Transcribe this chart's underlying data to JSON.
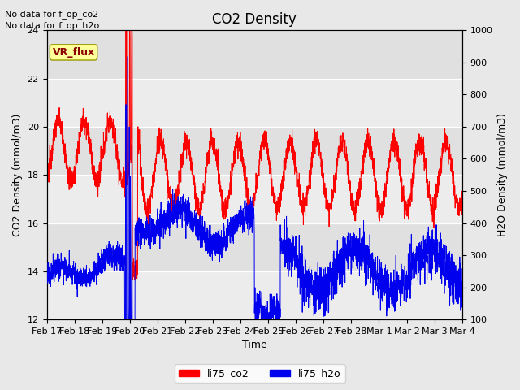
{
  "title": "CO2 Density",
  "xlabel": "Time",
  "ylabel_left": "CO2 Density (mmol/m3)",
  "ylabel_right": "H2O Density (mmol/m3)",
  "annotation_top_line1": "No data for f_op_co2",
  "annotation_top_line2": "No data for f_op_h2o",
  "annotation_box": "VR_flux",
  "ylim_left": [
    12,
    24
  ],
  "ylim_right": [
    100,
    1000
  ],
  "yticks_left": [
    12,
    14,
    16,
    18,
    20,
    22,
    24
  ],
  "yticks_right": [
    100,
    200,
    300,
    400,
    500,
    600,
    700,
    800,
    900,
    1000
  ],
  "xtick_labels": [
    "Feb 17",
    "Feb 18",
    "Feb 19",
    "Feb 20",
    "Feb 21",
    "Feb 22",
    "Feb 23",
    "Feb 24",
    "Feb 25",
    "Feb 26",
    "Feb 27",
    "Feb 28",
    "Mar 1",
    "Mar 2",
    "Mar 3",
    "Mar 4"
  ],
  "co2_color": "#ff0000",
  "h2o_color": "#0000ee",
  "legend_labels": [
    "li75_co2",
    "li75_h2o"
  ],
  "fig_facecolor": "#e8e8e8",
  "plot_facecolor": "#e0e0e0",
  "title_fontsize": 12,
  "label_fontsize": 9,
  "tick_fontsize": 8,
  "annot_fontsize": 8
}
